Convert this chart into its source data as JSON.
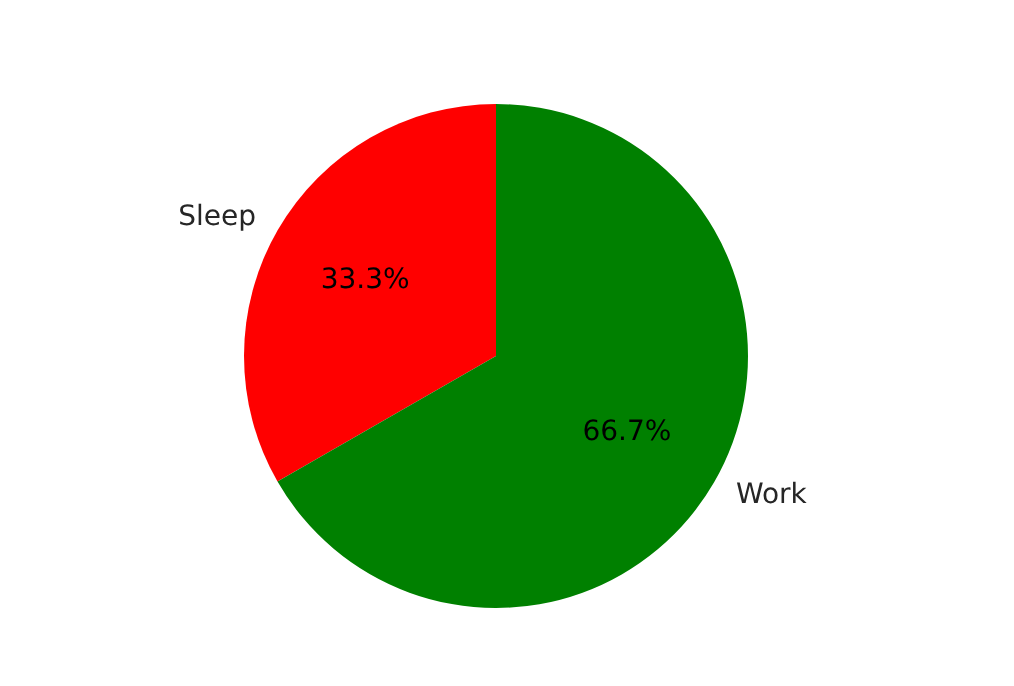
{
  "chart_data": {
    "type": "pie",
    "categories": [
      "Sleep",
      "Work"
    ],
    "values": [
      33.3,
      66.7
    ],
    "colors": [
      "#ff0000",
      "#008000"
    ],
    "value_labels": [
      "33.3%",
      "66.7%"
    ],
    "legend": false
  }
}
